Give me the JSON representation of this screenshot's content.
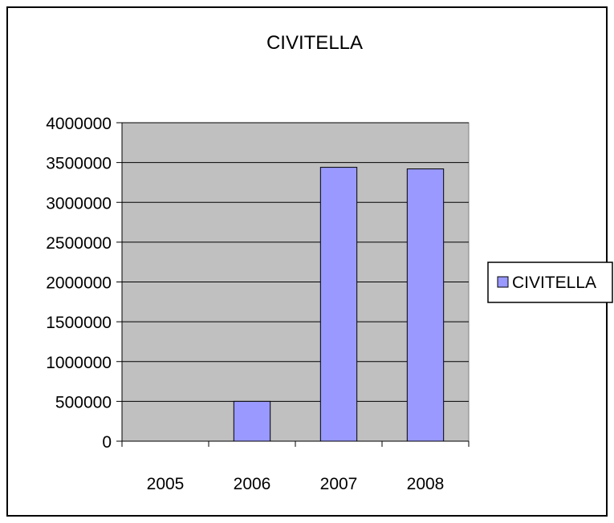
{
  "chart_data": {
    "type": "bar",
    "title": "CIVITELLA",
    "categories": [
      "2005",
      "2006",
      "2007",
      "2008"
    ],
    "series": [
      {
        "name": "CIVITELLA",
        "values": [
          0,
          500000,
          3440000,
          3420000
        ]
      }
    ],
    "ylim": [
      0,
      4000000
    ],
    "yticks": [
      0,
      500000,
      1000000,
      1500000,
      2000000,
      2500000,
      3000000,
      3500000,
      4000000
    ],
    "ytick_labels": [
      "0",
      "500000",
      "1000000",
      "1500000",
      "2000000",
      "2500000",
      "3000000",
      "3500000",
      "4000000"
    ],
    "grid": true,
    "legend": "right",
    "colors": {
      "bar": "#9999ff",
      "plot_bg": "#c0c0c0",
      "grid": "#000000"
    }
  }
}
